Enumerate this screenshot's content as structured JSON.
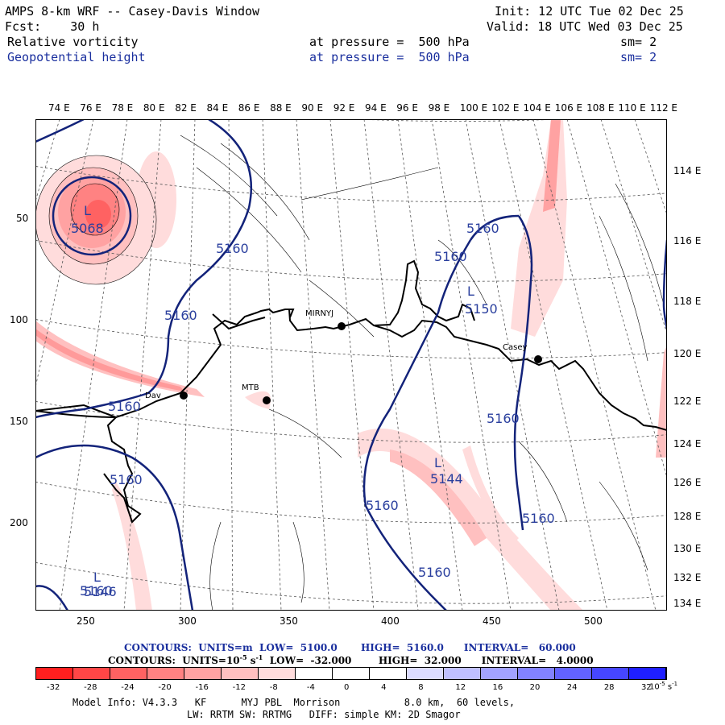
{
  "header": {
    "title": "AMPS 8-km WRF -- Casey-Davis Window",
    "init": "Init: 12 UTC Tue 02 Dec 25",
    "fcst": "Fcst:    30 h",
    "valid": "Valid: 18 UTC Wed 03 Dec 25",
    "field1_name": "Relative vorticity",
    "field1_level": "at pressure =  500 hPa",
    "field1_smooth": "sm= 2",
    "field2_name": "Geopotential height",
    "field2_level": "at pressure =  500 hPa",
    "field2_smooth": "sm= 2"
  },
  "colors": {
    "height_contour": "#13237a",
    "vorticity_neg": "#e83a3a",
    "vorticity_pos": "#2a2ae8",
    "coast": "#000000",
    "grid": "#555555",
    "header_blue": "#1a2f9e"
  },
  "top_lon_labels": [
    "74 E",
    "76 E",
    "78 E",
    "80 E",
    "82 E",
    "84 E",
    "86 E",
    "88 E",
    "90 E",
    "92 E",
    "94 E",
    "96 E",
    "98 E",
    "100 E",
    "102 E",
    "104 E",
    "106 E",
    "108 E",
    "110 E",
    "112 E"
  ],
  "right_lon_labels": [
    "114 E",
    "116 E",
    "118 E",
    "120 E",
    "122 E",
    "124 E",
    "126 E",
    "128 E",
    "130 E",
    "132 E",
    "134 E"
  ],
  "x_axis_labels": [
    "250",
    "300",
    "350",
    "400",
    "450",
    "500"
  ],
  "y_axis_labels": [
    "50",
    "100",
    "150",
    "200"
  ],
  "stations": [
    {
      "name": "MIRNYJ"
    },
    {
      "name": "Casey"
    },
    {
      "name": "Dav"
    },
    {
      "name": "MTB"
    }
  ],
  "height_labels": [
    "5068",
    "5160",
    "5160",
    "5160",
    "5160",
    "5160",
    "5160",
    "5160",
    "5160",
    "5160",
    "5160",
    "5160",
    "5144",
    "5146",
    "5150",
    "L",
    "L",
    "L",
    "L"
  ],
  "footer": {
    "contours1": "CONTOURS:  UNITS=m  LOW=  5100.0       HIGH=  5160.0      INTERVAL=   60.000",
    "contours2": "CONTOURS:  UNITS=10",
    "contours2_exp": "-5",
    "contours2_rest": " s",
    "contours2_exp2": "-1",
    "contours2_tail": "  LOW=  -32.000        HIGH=  32.000      INTERVAL=   4.0000",
    "model_info": "Model Info: V4.3.3   KF      MYJ PBL  Morrison           8.0 km,  60 levels,",
    "model_info2": "LW: RRTM SW: RRTMG   DIFF: simple KM: 2D Smagor"
  },
  "colorbar": {
    "labels": [
      "-32",
      "-28",
      "-24",
      "-20",
      "-16",
      "-12",
      "-8",
      "-4",
      "0",
      "4",
      "8",
      "12",
      "16",
      "20",
      "24",
      "28",
      "32"
    ],
    "unit": "10",
    "unit_exp": "-5",
    "unit_rest": " s",
    "unit_exp2": "-1",
    "swatches": [
      "#ff1f1f",
      "#ff4646",
      "#ff6262",
      "#ff8282",
      "#ffa2a2",
      "#ffc0c0",
      "#ffdcdc",
      "#ffffff",
      "#ffffff",
      "#ffffff",
      "#dcdcff",
      "#c0c0ff",
      "#a2a2ff",
      "#8282ff",
      "#6262ff",
      "#4646ff",
      "#1f1fff"
    ]
  }
}
